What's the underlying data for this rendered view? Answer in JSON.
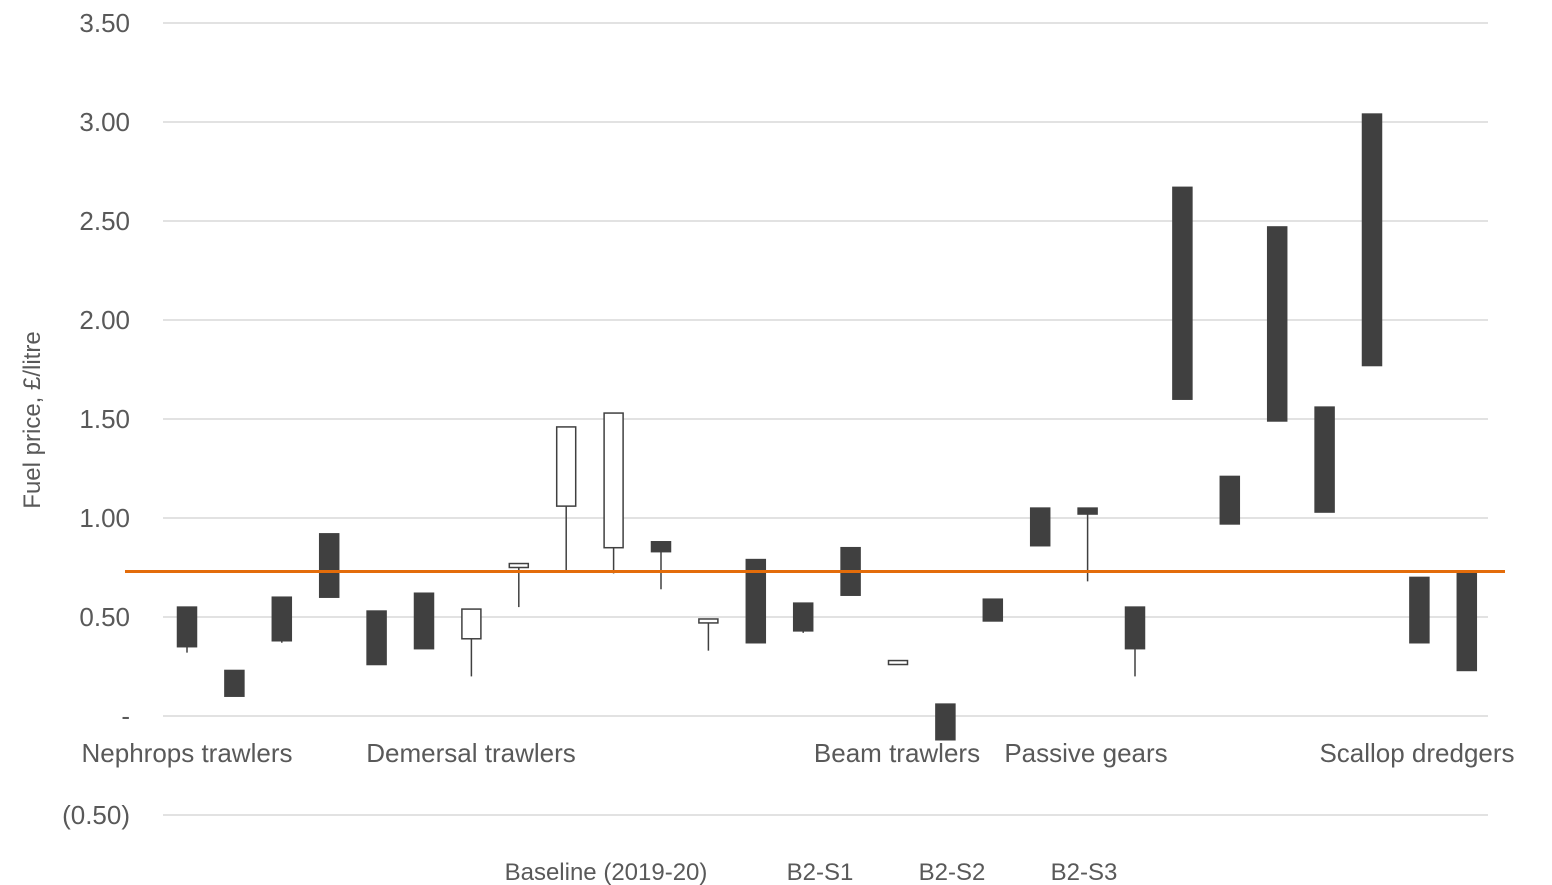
{
  "chart_data": {
    "type": "candlestick",
    "ylabel": "Fuel price, £/litre",
    "ylim": [
      -0.5,
      3.5
    ],
    "yticks": [
      {
        "value": 3.5,
        "label": "3.50"
      },
      {
        "value": 3.0,
        "label": "3.00"
      },
      {
        "value": 2.5,
        "label": "2.50"
      },
      {
        "value": 2.0,
        "label": "2.00"
      },
      {
        "value": 1.5,
        "label": "1.50"
      },
      {
        "value": 1.0,
        "label": "1.00"
      },
      {
        "value": 0.5,
        "label": "0.50"
      },
      {
        "value": 0.0,
        "label": "-"
      },
      {
        "value": -0.5,
        "label": "(0.50)"
      }
    ],
    "category_labels": [
      "Nephrops trawlers",
      "Demersal trawlers",
      "Beam trawlers",
      "Passive gears",
      "Scallop dredgers"
    ],
    "legend": [
      "Baseline (2019-20)",
      "B2-S1",
      "B2-S2",
      "B2-S3"
    ],
    "reference_line": {
      "value": 0.73,
      "color": "#E36C0A"
    },
    "colors": {
      "filled": "#404040",
      "hollow": "#ffffff",
      "outline": "#404040",
      "grid": "#d9d9d9"
    },
    "candles": [
      {
        "open": 0.55,
        "close": 0.35,
        "low": 0.32,
        "high": 0.55,
        "filled": true
      },
      {
        "open": 0.23,
        "close": 0.1,
        "low": 0.1,
        "high": 0.23,
        "filled": true
      },
      {
        "open": 0.6,
        "close": 0.38,
        "low": 0.37,
        "high": 0.6,
        "filled": true
      },
      {
        "open": 0.92,
        "close": 0.6,
        "low": 0.6,
        "high": 0.92,
        "filled": true
      },
      {
        "open": 0.53,
        "close": 0.26,
        "low": 0.26,
        "high": 0.53,
        "filled": true
      },
      {
        "open": 0.62,
        "close": 0.34,
        "low": 0.34,
        "high": 0.62,
        "filled": true
      },
      {
        "open": 0.39,
        "close": 0.54,
        "low": 0.2,
        "high": 0.54,
        "filled": false
      },
      {
        "open": 0.75,
        "close": 0.77,
        "low": 0.55,
        "high": 0.77,
        "filled": false
      },
      {
        "open": 1.06,
        "close": 1.46,
        "low": 0.73,
        "high": 1.46,
        "filled": false
      },
      {
        "open": 0.85,
        "close": 1.53,
        "low": 0.72,
        "high": 1.53,
        "filled": false
      },
      {
        "open": 0.88,
        "close": 0.83,
        "low": 0.64,
        "high": 0.88,
        "filled": true
      },
      {
        "open": 0.47,
        "close": 0.49,
        "low": 0.33,
        "high": 0.49,
        "filled": false
      },
      {
        "open": 0.79,
        "close": 0.37,
        "low": 0.37,
        "high": 0.79,
        "filled": true
      },
      {
        "open": 0.57,
        "close": 0.43,
        "low": 0.42,
        "high": 0.57,
        "filled": true
      },
      {
        "open": 0.85,
        "close": 0.61,
        "low": 0.61,
        "high": 0.85,
        "filled": true
      },
      {
        "open": 0.26,
        "close": 0.28,
        "low": 0.26,
        "high": 0.28,
        "filled": false
      },
      {
        "open": 0.06,
        "close": -0.12,
        "low": -0.12,
        "high": 0.06,
        "filled": true
      },
      {
        "open": 0.59,
        "close": 0.48,
        "low": 0.48,
        "high": 0.59,
        "filled": true
      },
      {
        "open": 1.05,
        "close": 0.86,
        "low": 0.86,
        "high": 1.05,
        "filled": true
      },
      {
        "open": 1.05,
        "close": 1.02,
        "low": 0.68,
        "high": 1.05,
        "filled": true
      },
      {
        "open": 0.55,
        "close": 0.34,
        "low": 0.2,
        "high": 0.55,
        "filled": true
      },
      {
        "open": 2.67,
        "close": 1.6,
        "low": 1.6,
        "high": 2.67,
        "filled": true
      },
      {
        "open": 1.21,
        "close": 0.97,
        "low": 0.97,
        "high": 1.21,
        "filled": true
      },
      {
        "open": 2.47,
        "close": 1.49,
        "low": 1.49,
        "high": 2.47,
        "filled": true
      },
      {
        "open": 1.56,
        "close": 1.03,
        "low": 1.03,
        "high": 1.56,
        "filled": true
      },
      {
        "open": 3.04,
        "close": 1.77,
        "low": 1.77,
        "high": 3.04,
        "filled": true
      },
      {
        "open": 0.7,
        "close": 0.37,
        "low": 0.37,
        "high": 0.7,
        "filled": true
      },
      {
        "open": 0.72,
        "close": 0.23,
        "low": 0.23,
        "high": 0.72,
        "filled": true
      }
    ]
  }
}
